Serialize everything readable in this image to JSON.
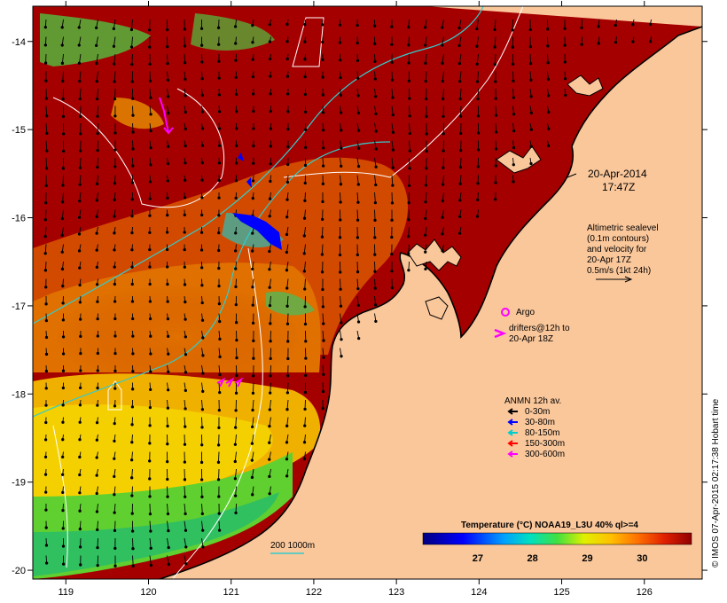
{
  "chart_data": {
    "type": "map",
    "xlim": [
      118.6,
      126.7
    ],
    "ylim": [
      -20.1,
      -13.6
    ],
    "x_ticks": [
      119,
      120,
      121,
      122,
      123,
      124,
      125,
      126
    ],
    "y_ticks": [
      -14,
      -15,
      -16,
      -17,
      -18,
      -19,
      -20
    ],
    "date_label": "20-Apr-2014",
    "time_label": "17:47Z",
    "altimetry_note": [
      "Altimetric sealevel",
      "(0.1m contours)",
      "and velocity for",
      "20-Apr 17Z",
      "0.5m/s (1kt 24h)"
    ],
    "argo_label": "Argo",
    "drifters_label": [
      "drifters@12h to",
      "20-Apr 18Z"
    ],
    "anmn_title": "ANMN 12h av.",
    "anmn_legend": [
      {
        "label": "0-30m",
        "color": "#000000"
      },
      {
        "label": "30-80m",
        "color": "#0000ff"
      },
      {
        "label": "80-150m",
        "color": "#00cccc"
      },
      {
        "label": "150-300m",
        "color": "#ff0000"
      },
      {
        "label": "300-600m",
        "color": "#ff00ff"
      }
    ],
    "isobath_label": "200  1000m",
    "colorbar": {
      "title": "Temperature (°C) NOAA19_L3U 40% ql>=4",
      "min": 26.0,
      "max": 30.9,
      "ticks": [
        27,
        28,
        29,
        30
      ]
    },
    "credit": "© IMOS 07-Apr-2015 02:17:38 Hobart time",
    "colors": {
      "land": "#fac79b",
      "warm": "#a50000",
      "coast": "#000000",
      "contour": "#ffffff",
      "isobath": "#33cccc"
    }
  }
}
